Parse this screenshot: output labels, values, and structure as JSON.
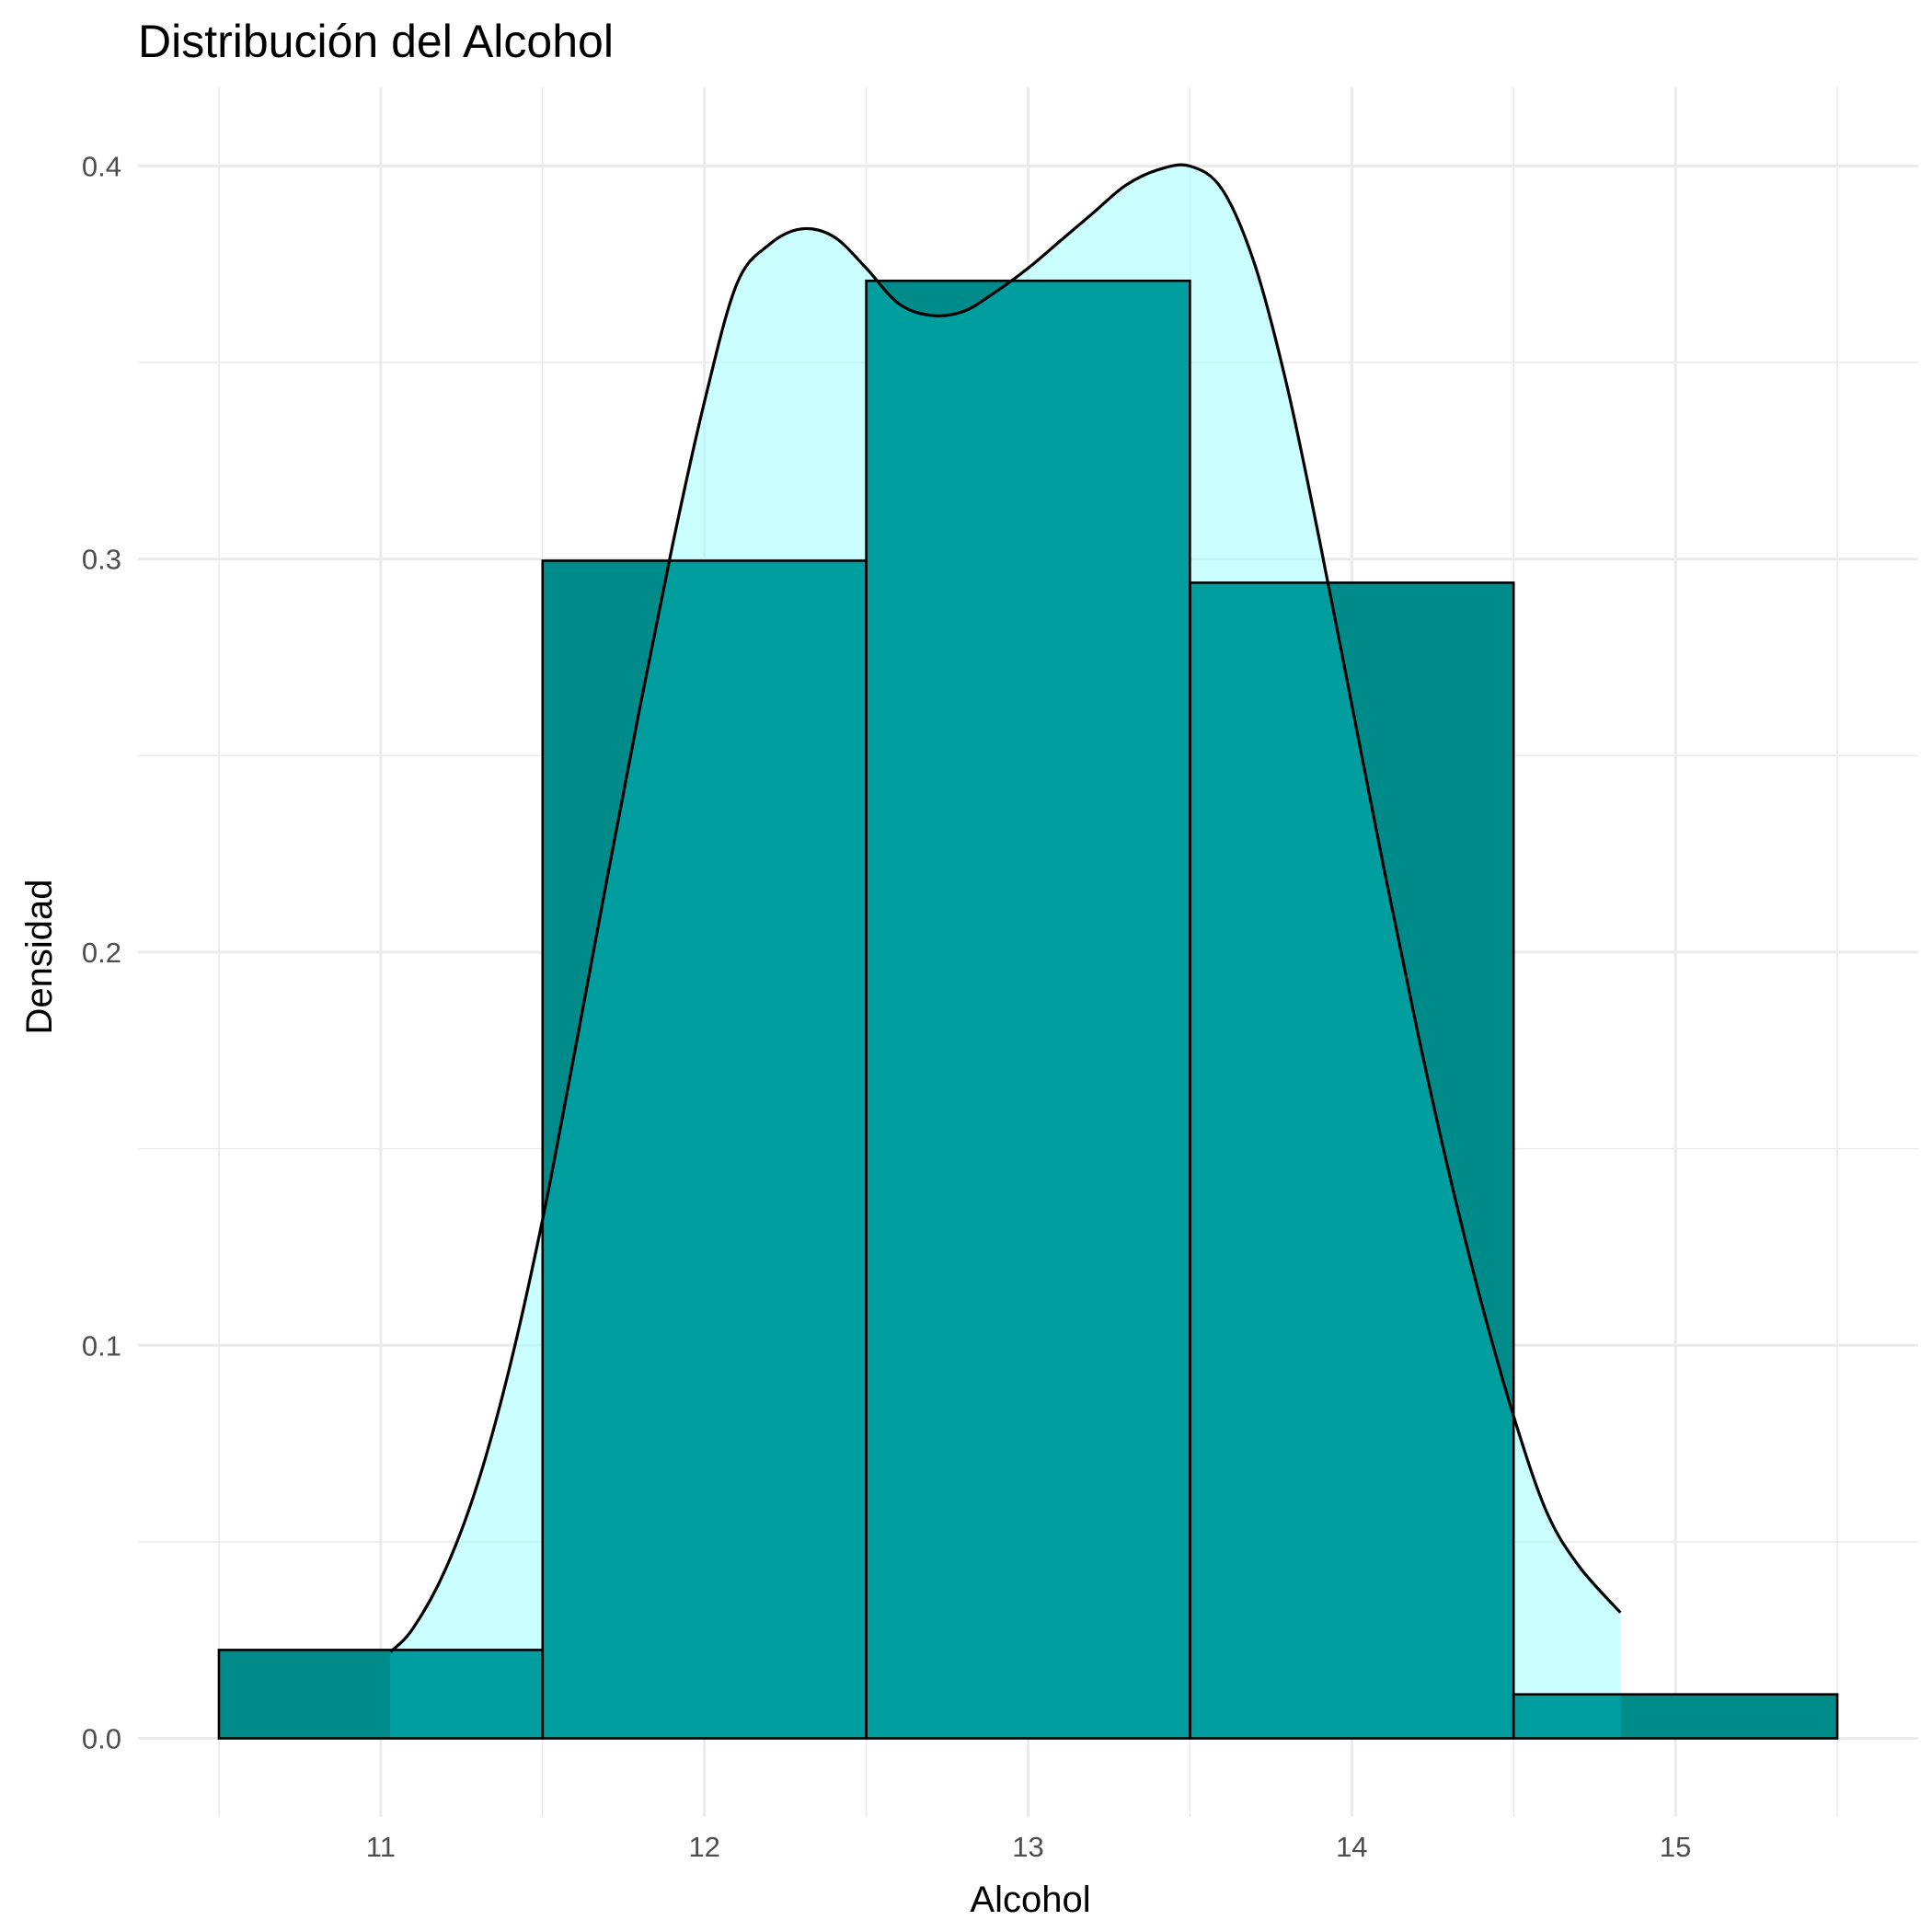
{
  "chart_data": {
    "type": "bar",
    "title": "Distribución del Alcohol",
    "xlabel": "Alcohol",
    "ylabel": "Densidad",
    "xlim": [
      10.25,
      15.75
    ],
    "ylim": [
      -0.02,
      0.42
    ],
    "x_ticks": [
      11,
      12,
      13,
      14,
      15
    ],
    "y_ticks": [
      0.0,
      0.1,
      0.2,
      0.3,
      0.4
    ],
    "x_tick_labels": [
      "11",
      "12",
      "13",
      "14",
      "15"
    ],
    "y_tick_labels": [
      "0.0",
      "0.1",
      "0.2",
      "0.3",
      "0.4"
    ],
    "grid": true,
    "legend": "none",
    "histogram": {
      "bins": [
        {
          "x0": 10.5,
          "x1": 11.5,
          "density": 0.0225
        },
        {
          "x0": 11.5,
          "x1": 12.5,
          "density": 0.2996
        },
        {
          "x0": 12.5,
          "x1": 13.5,
          "density": 0.3708
        },
        {
          "x0": 13.5,
          "x1": 14.5,
          "density": 0.294
        },
        {
          "x0": 14.5,
          "x1": 15.5,
          "density": 0.0112
        }
      ],
      "fill_color": "#008B8B",
      "outline_color": "#000000"
    },
    "density": {
      "x": [
        11.03,
        11.1,
        11.2,
        11.3,
        11.4,
        11.5,
        11.6,
        11.7,
        11.8,
        11.9,
        12.0,
        12.1,
        12.2,
        12.3,
        12.4,
        12.5,
        12.6,
        12.7,
        12.8,
        12.9,
        13.0,
        13.1,
        13.2,
        13.3,
        13.4,
        13.5,
        13.6,
        13.7,
        13.8,
        13.9,
        14.0,
        14.1,
        14.2,
        14.3,
        14.4,
        14.5,
        14.6,
        14.7,
        14.83
      ],
      "y": [
        0.022,
        0.028,
        0.043,
        0.065,
        0.095,
        0.132,
        0.175,
        0.219,
        0.262,
        0.303,
        0.34,
        0.37,
        0.38,
        0.384,
        0.382,
        0.374,
        0.365,
        0.362,
        0.363,
        0.368,
        0.374,
        0.381,
        0.388,
        0.395,
        0.399,
        0.4,
        0.394,
        0.375,
        0.344,
        0.305,
        0.263,
        0.221,
        0.181,
        0.144,
        0.111,
        0.082,
        0.058,
        0.044,
        0.032
      ],
      "fill_color": "#97FFFF",
      "fill_opacity": 0.5,
      "line_color": "#000000"
    }
  }
}
